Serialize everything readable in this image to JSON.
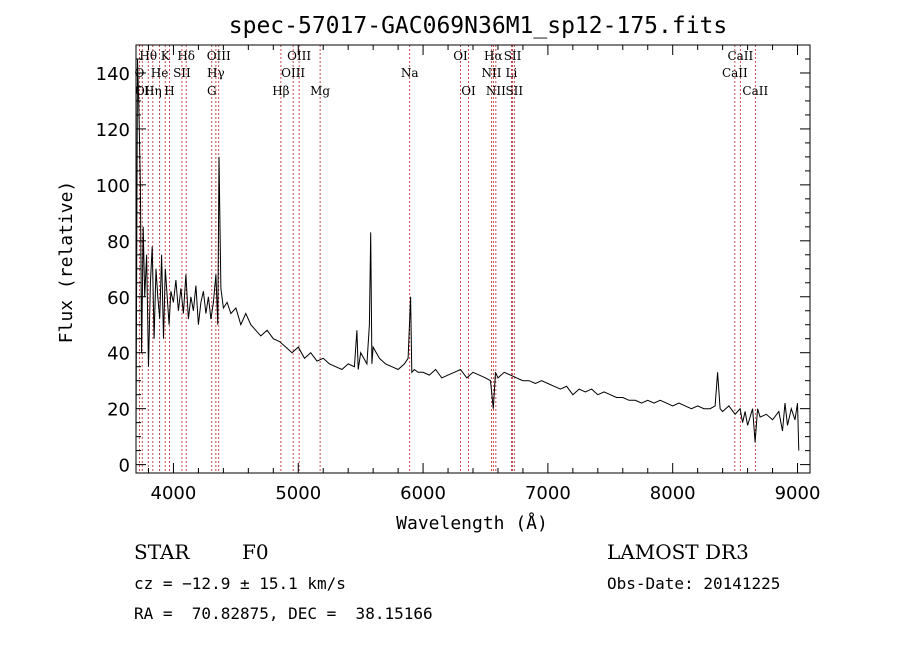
{
  "chart_data": {
    "type": "line",
    "title": "spec-57017-GAC069N36M1_sp12-175.fits",
    "xlabel": "Wavelength (Å)",
    "ylabel": "Flux (relative)",
    "xlim": [
      3700,
      9100
    ],
    "ylim": [
      -3,
      150
    ],
    "xticks": [
      4000,
      5000,
      6000,
      7000,
      8000,
      9000
    ],
    "yticks": [
      0,
      20,
      40,
      60,
      80,
      100,
      120,
      140
    ],
    "series": [
      {
        "name": "flux",
        "x": [
          3700,
          3712,
          3722,
          3735,
          3745,
          3758,
          3770,
          3785,
          3800,
          3815,
          3830,
          3845,
          3860,
          3875,
          3890,
          3905,
          3920,
          3935,
          3950,
          3965,
          3980,
          4000,
          4020,
          4040,
          4060,
          4080,
          4100,
          4120,
          4140,
          4160,
          4180,
          4200,
          4220,
          4240,
          4260,
          4280,
          4300,
          4320,
          4340,
          4355,
          4365,
          4380,
          4400,
          4430,
          4460,
          4500,
          4540,
          4580,
          4620,
          4660,
          4700,
          4750,
          4800,
          4850,
          4900,
          4950,
          5000,
          5050,
          5100,
          5150,
          5200,
          5250,
          5300,
          5350,
          5400,
          5450,
          5470,
          5480,
          5500,
          5550,
          5570,
          5580,
          5590,
          5600,
          5650,
          5700,
          5750,
          5800,
          5850,
          5880,
          5900,
          5910,
          5930,
          5960,
          6000,
          6050,
          6100,
          6150,
          6200,
          6250,
          6300,
          6350,
          6400,
          6450,
          6500,
          6540,
          6563,
          6580,
          6600,
          6650,
          6700,
          6750,
          6800,
          6850,
          6900,
          6950,
          7000,
          7050,
          7100,
          7150,
          7200,
          7250,
          7300,
          7350,
          7400,
          7450,
          7500,
          7550,
          7600,
          7650,
          7700,
          7750,
          7800,
          7850,
          7900,
          7950,
          8000,
          8050,
          8100,
          8150,
          8200,
          8250,
          8300,
          8340,
          8360,
          8380,
          8400,
          8450,
          8500,
          8540,
          8560,
          8580,
          8600,
          8640,
          8660,
          8680,
          8700,
          8750,
          8800,
          8850,
          8880,
          8900,
          8920,
          8950,
          8980,
          9000,
          9010
        ],
        "y": [
          10,
          145,
          130,
          100,
          40,
          85,
          60,
          75,
          35,
          65,
          78,
          45,
          70,
          60,
          52,
          75,
          45,
          70,
          60,
          50,
          62,
          58,
          66,
          55,
          63,
          54,
          68,
          52,
          60,
          55,
          64,
          50,
          58,
          62,
          54,
          60,
          52,
          58,
          68,
          50,
          110,
          63,
          56,
          58,
          54,
          56,
          50,
          54,
          50,
          48,
          46,
          48,
          45,
          44,
          42,
          40,
          42,
          38,
          40,
          37,
          38,
          36,
          35,
          34,
          36,
          35,
          48,
          34,
          40,
          36,
          50,
          83,
          36,
          42,
          38,
          36,
          35,
          34,
          36,
          38,
          60,
          33,
          34,
          33,
          33,
          32,
          34,
          31,
          32,
          33,
          34,
          31,
          33,
          32,
          31,
          30,
          20,
          33,
          31,
          33,
          32,
          31,
          30,
          30,
          29,
          30,
          29,
          28,
          27,
          28,
          25,
          27,
          26,
          27,
          25,
          26,
          25,
          24,
          24,
          23,
          23,
          22,
          23,
          22,
          23,
          22,
          21,
          22,
          21,
          20,
          21,
          20,
          20,
          21,
          33,
          20,
          19,
          21,
          18,
          20,
          15,
          19,
          14,
          20,
          8,
          20,
          17,
          18,
          16,
          19,
          12,
          22,
          14,
          20,
          16,
          22,
          5
        ]
      }
    ],
    "emission_lines": [
      {
        "label": "Hθ",
        "x": 3798,
        "row": 1
      },
      {
        "label": "K",
        "x": 3934,
        "row": 1
      },
      {
        "label": "Hδ",
        "x": 4102,
        "row": 1
      },
      {
        "label": "OIII",
        "x": 4363,
        "row": 1
      },
      {
        "label": "OIII",
        "x": 5007,
        "row": 1
      },
      {
        "label": "OI",
        "x": 6300,
        "row": 1
      },
      {
        "label": "Hα",
        "x": 6563,
        "row": 1
      },
      {
        "label": "SII",
        "x": 6717,
        "row": 1
      },
      {
        "label": "CaII",
        "x": 8542,
        "row": 1
      },
      {
        "label": "O",
        "x": 3727,
        "row": 2
      },
      {
        "label": "He",
        "x": 3889,
        "row": 2
      },
      {
        "label": "SII",
        "x": 4068,
        "row": 2
      },
      {
        "label": "Hγ",
        "x": 4340,
        "row": 2
      },
      {
        "label": "OIII",
        "x": 4959,
        "row": 2
      },
      {
        "label": "Na",
        "x": 5893,
        "row": 2
      },
      {
        "label": "NII",
        "x": 6548,
        "row": 2
      },
      {
        "label": "Li",
        "x": 6708,
        "row": 2
      },
      {
        "label": "CaII",
        "x": 8498,
        "row": 2
      },
      {
        "label": "OI",
        "x": 3750,
        "row": 3
      },
      {
        "label": "Hη",
        "x": 3835,
        "row": 3
      },
      {
        "label": "H",
        "x": 3968,
        "row": 3
      },
      {
        "label": "G",
        "x": 4307,
        "row": 3
      },
      {
        "label": "Hβ",
        "x": 4861,
        "row": 3
      },
      {
        "label": "Mg",
        "x": 5175,
        "row": 3
      },
      {
        "label": "OI",
        "x": 6364,
        "row": 3
      },
      {
        "label": "NII",
        "x": 6583,
        "row": 3
      },
      {
        "label": "SII",
        "x": 6731,
        "row": 3
      },
      {
        "label": "CaII",
        "x": 8662,
        "row": 3
      }
    ]
  },
  "info": {
    "object_type": "STAR",
    "subclass": "F0",
    "survey": "LAMOST DR3",
    "redshift": "cz = −12.9 ± 15.1 km/s",
    "obs_date": "Obs-Date: 20141225",
    "coords": "RA =  70.82875, DEC =  38.15166"
  },
  "colors": {
    "spectrum": "#000000",
    "line_marker": "#b22222",
    "axes": "#000000"
  }
}
